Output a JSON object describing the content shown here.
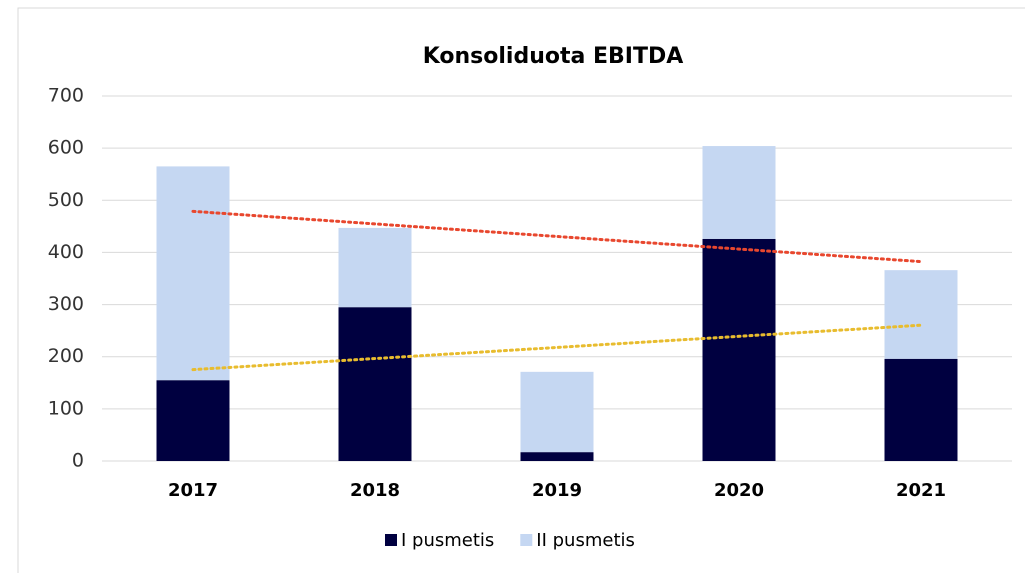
{
  "chart_data": {
    "type": "stacked_bar",
    "title": "Konsoliduota EBITDA",
    "categories": [
      "2017",
      "2018",
      "2019",
      "2020",
      "2021"
    ],
    "series": [
      {
        "name": "I pusmetis",
        "color": "#000040",
        "values": [
          155,
          295,
          17,
          426,
          196
        ],
        "trend_color": "#e8bc2e"
      },
      {
        "name": "II pusmetis",
        "color": "#c5d7f2",
        "values": [
          410,
          152,
          154,
          178,
          170
        ]
      }
    ],
    "total_trend_color": "#e8472e",
    "ylim": [
      0,
      700
    ],
    "yticks": [
      0,
      100,
      200,
      300,
      400,
      500,
      600,
      700
    ],
    "grid": true,
    "legend": "bottom"
  }
}
